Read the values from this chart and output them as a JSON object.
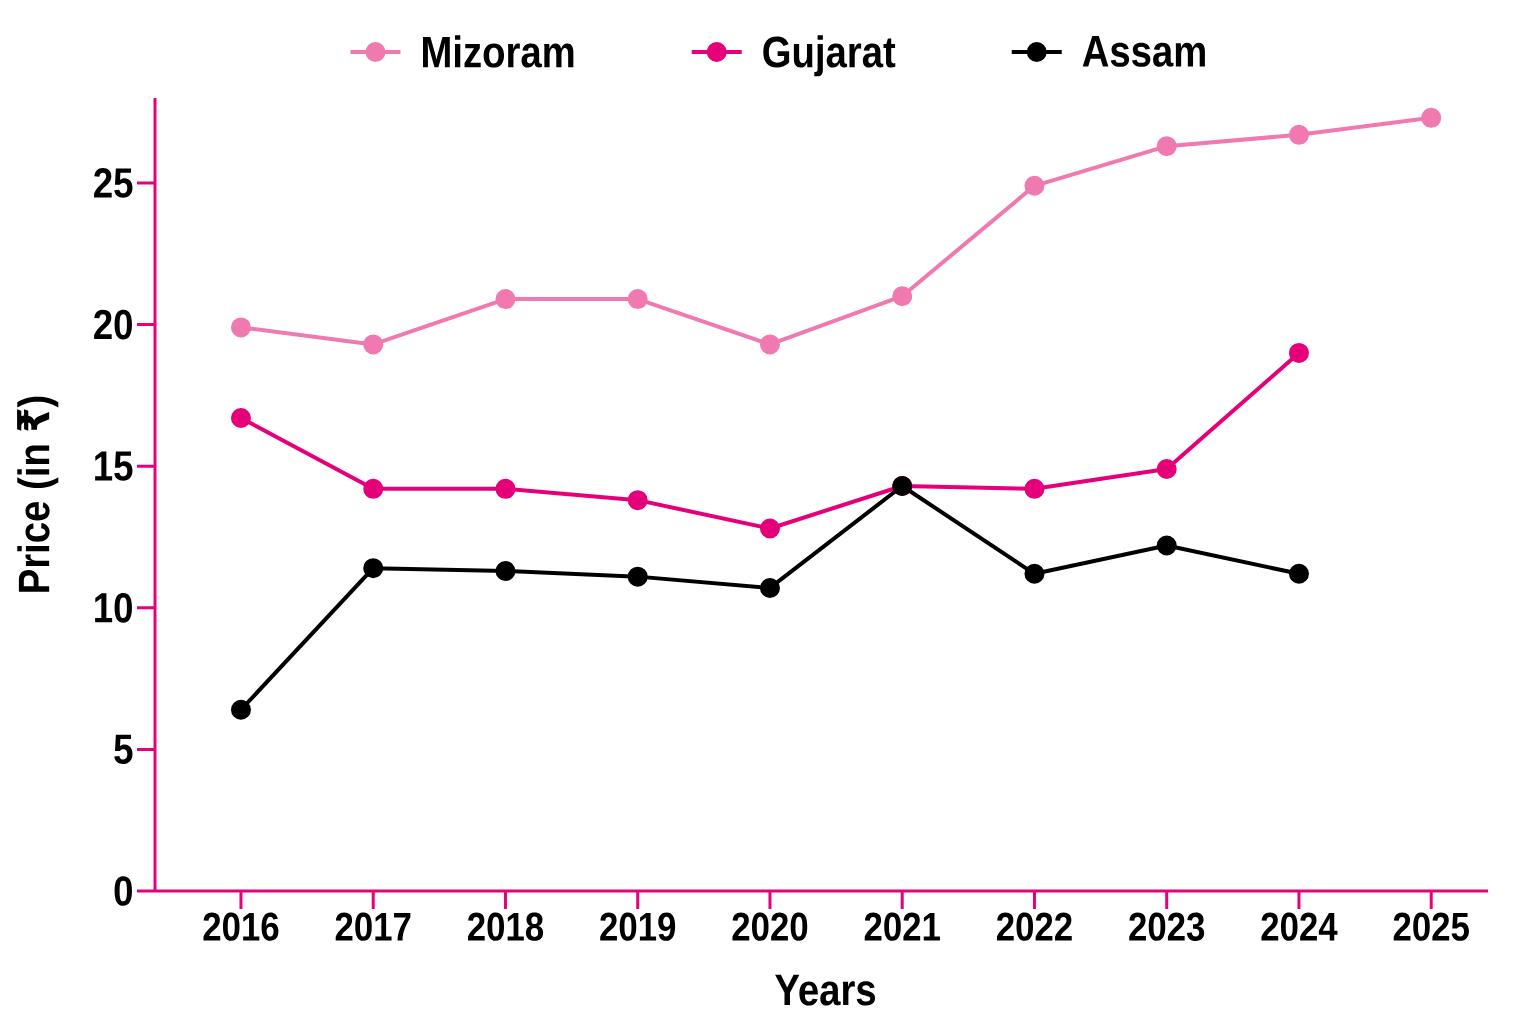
{
  "chart_data": {
    "type": "line",
    "xlabel": "Years",
    "ylabel": "Price (in ₹)",
    "categories": [
      "2016",
      "2017",
      "2018",
      "2019",
      "2020",
      "2021",
      "2022",
      "2023",
      "2024",
      "2025"
    ],
    "series": [
      {
        "name": "Mizoram",
        "color": "#f07ab0",
        "values": [
          19.9,
          19.3,
          20.9,
          20.9,
          19.3,
          21.0,
          24.9,
          26.3,
          26.7,
          27.3
        ]
      },
      {
        "name": "Gujarat",
        "color": "#e5007a",
        "values": [
          16.7,
          14.2,
          14.2,
          13.8,
          12.8,
          14.3,
          14.2,
          14.9,
          19.0,
          null
        ]
      },
      {
        "name": "Assam",
        "color": "#000000",
        "values": [
          6.4,
          11.4,
          11.3,
          11.1,
          10.7,
          14.3,
          11.2,
          12.2,
          11.2,
          null
        ]
      }
    ],
    "ylim": [
      0,
      28
    ],
    "yticks": [
      0,
      5,
      10,
      15,
      20,
      25
    ],
    "legend": "top",
    "marker": "circle",
    "line_style": "solid"
  }
}
